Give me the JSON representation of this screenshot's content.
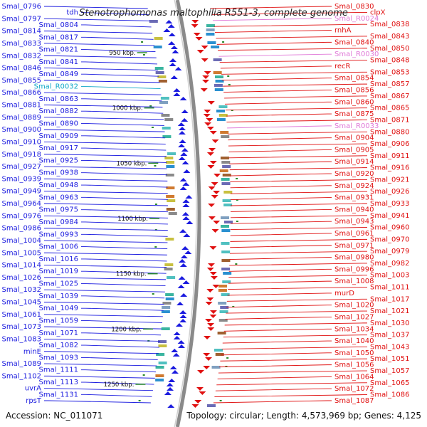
{
  "title": "Stenotrophomonas maltophilia R551-3, complete genome",
  "footer": {
    "accession": "Accession: NC_011071",
    "summary": "Topology: circular; Length: 4,573,969 bp; Genes: 4,125"
  },
  "colors": {
    "left_strand": "#1a1adf",
    "right_strand": "#e01010",
    "rna_gene": "#e079d8",
    "special_gene": "#10a8c8",
    "backbone": "#8a8a8a",
    "tick": "#2a8a2a"
  },
  "scale_ticks": [
    "950 kbp.",
    "1000 kbp.",
    "1050 kbp.",
    "1100 kbp.",
    "1150 kbp.",
    "1200 kbp.",
    "1250 kbp."
  ],
  "left_labels": [
    {
      "text": "Smal_0796",
      "type": "cds"
    },
    {
      "text": "tdh",
      "type": "cds"
    },
    {
      "text": "Smal_0797",
      "type": "cds"
    },
    {
      "text": "Smal_0804",
      "type": "cds"
    },
    {
      "text": "Smal_0814",
      "type": "cds"
    },
    {
      "text": "Smal_0817",
      "type": "cds"
    },
    {
      "text": "Smal_0833",
      "type": "cds"
    },
    {
      "text": "Smal_0821",
      "type": "cds"
    },
    {
      "text": "Smal_0832",
      "type": "cds"
    },
    {
      "text": "Smal_0841",
      "type": "cds"
    },
    {
      "text": "Smal_0846",
      "type": "cds"
    },
    {
      "text": "Smal_0849",
      "type": "cds"
    },
    {
      "text": "Smal_0855",
      "type": "cds"
    },
    {
      "text": "Smal_R0032",
      "type": "special"
    },
    {
      "text": "Smal_0866",
      "type": "cds"
    },
    {
      "text": "Smal_0863",
      "type": "cds"
    },
    {
      "text": "Smal_0881",
      "type": "cds"
    },
    {
      "text": "Smal_0882",
      "type": "cds"
    },
    {
      "text": "Smal_0889",
      "type": "cds"
    },
    {
      "text": "Smal_0890",
      "type": "cds"
    },
    {
      "text": "Smal_0900",
      "type": "cds"
    },
    {
      "text": "Smal_0909",
      "type": "cds"
    },
    {
      "text": "Smal_0910",
      "type": "cds"
    },
    {
      "text": "Smal_0917",
      "type": "cds"
    },
    {
      "text": "Smal_0918",
      "type": "cds"
    },
    {
      "text": "Smal_0925",
      "type": "cds"
    },
    {
      "text": "Smal_0927",
      "type": "cds"
    },
    {
      "text": "Smal_0938",
      "type": "cds"
    },
    {
      "text": "Smal_0939",
      "type": "cds"
    },
    {
      "text": "Smal_0948",
      "type": "cds"
    },
    {
      "text": "Smal_0949",
      "type": "cds"
    },
    {
      "text": "Smal_0963",
      "type": "cds"
    },
    {
      "text": "Smal_0964",
      "type": "cds"
    },
    {
      "text": "Smal_0975",
      "type": "cds"
    },
    {
      "text": "Smal_0976",
      "type": "cds"
    },
    {
      "text": "Smal_0984",
      "type": "cds"
    },
    {
      "text": "Smal_0986",
      "type": "cds"
    },
    {
      "text": "Smal_0993",
      "type": "cds"
    },
    {
      "text": "Smal_1004",
      "type": "cds"
    },
    {
      "text": "Smal_1006",
      "type": "cds"
    },
    {
      "text": "Smal_1005",
      "type": "cds"
    },
    {
      "text": "Smal_1016",
      "type": "cds"
    },
    {
      "text": "Smal_1014",
      "type": "cds"
    },
    {
      "text": "Smal_1019",
      "type": "cds"
    },
    {
      "text": "Smal_1026",
      "type": "cds"
    },
    {
      "text": "Smal_1025",
      "type": "cds"
    },
    {
      "text": "Smal_1032",
      "type": "cds"
    },
    {
      "text": "Smal_1039",
      "type": "cds"
    },
    {
      "text": "Smal_1045",
      "type": "cds"
    },
    {
      "text": "Smal_1049",
      "type": "cds"
    },
    {
      "text": "Smal_1061",
      "type": "cds"
    },
    {
      "text": "Smal_1059",
      "type": "cds"
    },
    {
      "text": "Smal_1073",
      "type": "cds"
    },
    {
      "text": "Smal_1071",
      "type": "cds"
    },
    {
      "text": "Smal_1083",
      "type": "cds"
    },
    {
      "text": "Smal_1082",
      "type": "cds"
    },
    {
      "text": "minE",
      "type": "cds"
    },
    {
      "text": "Smal_1093",
      "type": "cds"
    },
    {
      "text": "Smal_1089",
      "type": "cds"
    },
    {
      "text": "Smal_1111",
      "type": "cds"
    },
    {
      "text": "Smal_1102",
      "type": "cds"
    },
    {
      "text": "Smal_1113",
      "type": "cds"
    },
    {
      "text": "uvrA",
      "type": "cds"
    },
    {
      "text": "Smal_1131",
      "type": "cds"
    },
    {
      "text": "rpsT",
      "type": "cds"
    }
  ],
  "right_labels": [
    {
      "text": "Smal_0830",
      "type": "cds"
    },
    {
      "text": "clpX",
      "type": "cds"
    },
    {
      "text": "Smal_R0024",
      "type": "rna"
    },
    {
      "text": "Smal_0838",
      "type": "cds"
    },
    {
      "text": "rnhA",
      "type": "cds"
    },
    {
      "text": "Smal_0843",
      "type": "cds"
    },
    {
      "text": "Smal_0840",
      "type": "cds"
    },
    {
      "text": "Smal_0850",
      "type": "cds"
    },
    {
      "text": "Smal_R0030",
      "type": "rna"
    },
    {
      "text": "Smal_0848",
      "type": "cds"
    },
    {
      "text": "recR",
      "type": "cds"
    },
    {
      "text": "Smal_0853",
      "type": "cds"
    },
    {
      "text": "Smal_0854",
      "type": "cds"
    },
    {
      "text": "Smal_0857",
      "type": "cds"
    },
    {
      "text": "Smal_0856",
      "type": "cds"
    },
    {
      "text": "Smal_0867",
      "type": "cds"
    },
    {
      "text": "Smal_0860",
      "type": "cds"
    },
    {
      "text": "Smal_0865",
      "type": "cds"
    },
    {
      "text": "Smal_0875",
      "type": "cds"
    },
    {
      "text": "Smal_0871",
      "type": "cds"
    },
    {
      "text": "Smal_R0033",
      "type": "rna"
    },
    {
      "text": "Smal_0880",
      "type": "cds"
    },
    {
      "text": "Smal_0904",
      "type": "cds"
    },
    {
      "text": "Smal_0906",
      "type": "cds"
    },
    {
      "text": "Smal_0905",
      "type": "cds"
    },
    {
      "text": "Smal_0911",
      "type": "cds"
    },
    {
      "text": "Smal_0914",
      "type": "cds"
    },
    {
      "text": "Smal_0916",
      "type": "cds"
    },
    {
      "text": "Smal_0920",
      "type": "cds"
    },
    {
      "text": "Smal_0921",
      "type": "cds"
    },
    {
      "text": "Smal_0924",
      "type": "cds"
    },
    {
      "text": "Smal_0926",
      "type": "cds"
    },
    {
      "text": "Smal_0931",
      "type": "cds"
    },
    {
      "text": "Smal_0933",
      "type": "cds"
    },
    {
      "text": "Smal_0940",
      "type": "cds"
    },
    {
      "text": "Smal_0941",
      "type": "cds"
    },
    {
      "text": "Smal_0943",
      "type": "cds"
    },
    {
      "text": "Smal_0960",
      "type": "cds"
    },
    {
      "text": "Smal_0961",
      "type": "cds"
    },
    {
      "text": "Smal_0970",
      "type": "cds"
    },
    {
      "text": "Smal_0971",
      "type": "cds"
    },
    {
      "text": "Smal_0979",
      "type": "cds"
    },
    {
      "text": "Smal_0980",
      "type": "cds"
    },
    {
      "text": "Smal_0982",
      "type": "cds"
    },
    {
      "text": "Smal_0996",
      "type": "cds"
    },
    {
      "text": "Smal_1003",
      "type": "cds"
    },
    {
      "text": "Smal_1008",
      "type": "cds"
    },
    {
      "text": "Smal_1011",
      "type": "cds"
    },
    {
      "text": "murD",
      "type": "cds"
    },
    {
      "text": "Smal_1017",
      "type": "cds"
    },
    {
      "text": "Smal_1020",
      "type": "cds"
    },
    {
      "text": "Smal_1021",
      "type": "cds"
    },
    {
      "text": "Smal_1027",
      "type": "cds"
    },
    {
      "text": "Smal_1030",
      "type": "cds"
    },
    {
      "text": "Smal_1034",
      "type": "cds"
    },
    {
      "text": "Smal_1037",
      "type": "cds"
    },
    {
      "text": "Smal_1040",
      "type": "cds"
    },
    {
      "text": "Smal_1043",
      "type": "cds"
    },
    {
      "text": "Smal_1050",
      "type": "cds"
    },
    {
      "text": "Smal_1051",
      "type": "cds"
    },
    {
      "text": "Smal_1056",
      "type": "cds"
    },
    {
      "text": "Smal_1057",
      "type": "cds"
    },
    {
      "text": "Smal_1064",
      "type": "cds"
    },
    {
      "text": "Smal_1065",
      "type": "cds"
    },
    {
      "text": "Smal_1072",
      "type": "cds"
    },
    {
      "text": "Smal_1086",
      "type": "cds"
    },
    {
      "text": "Smal_1087",
      "type": "cds"
    }
  ]
}
